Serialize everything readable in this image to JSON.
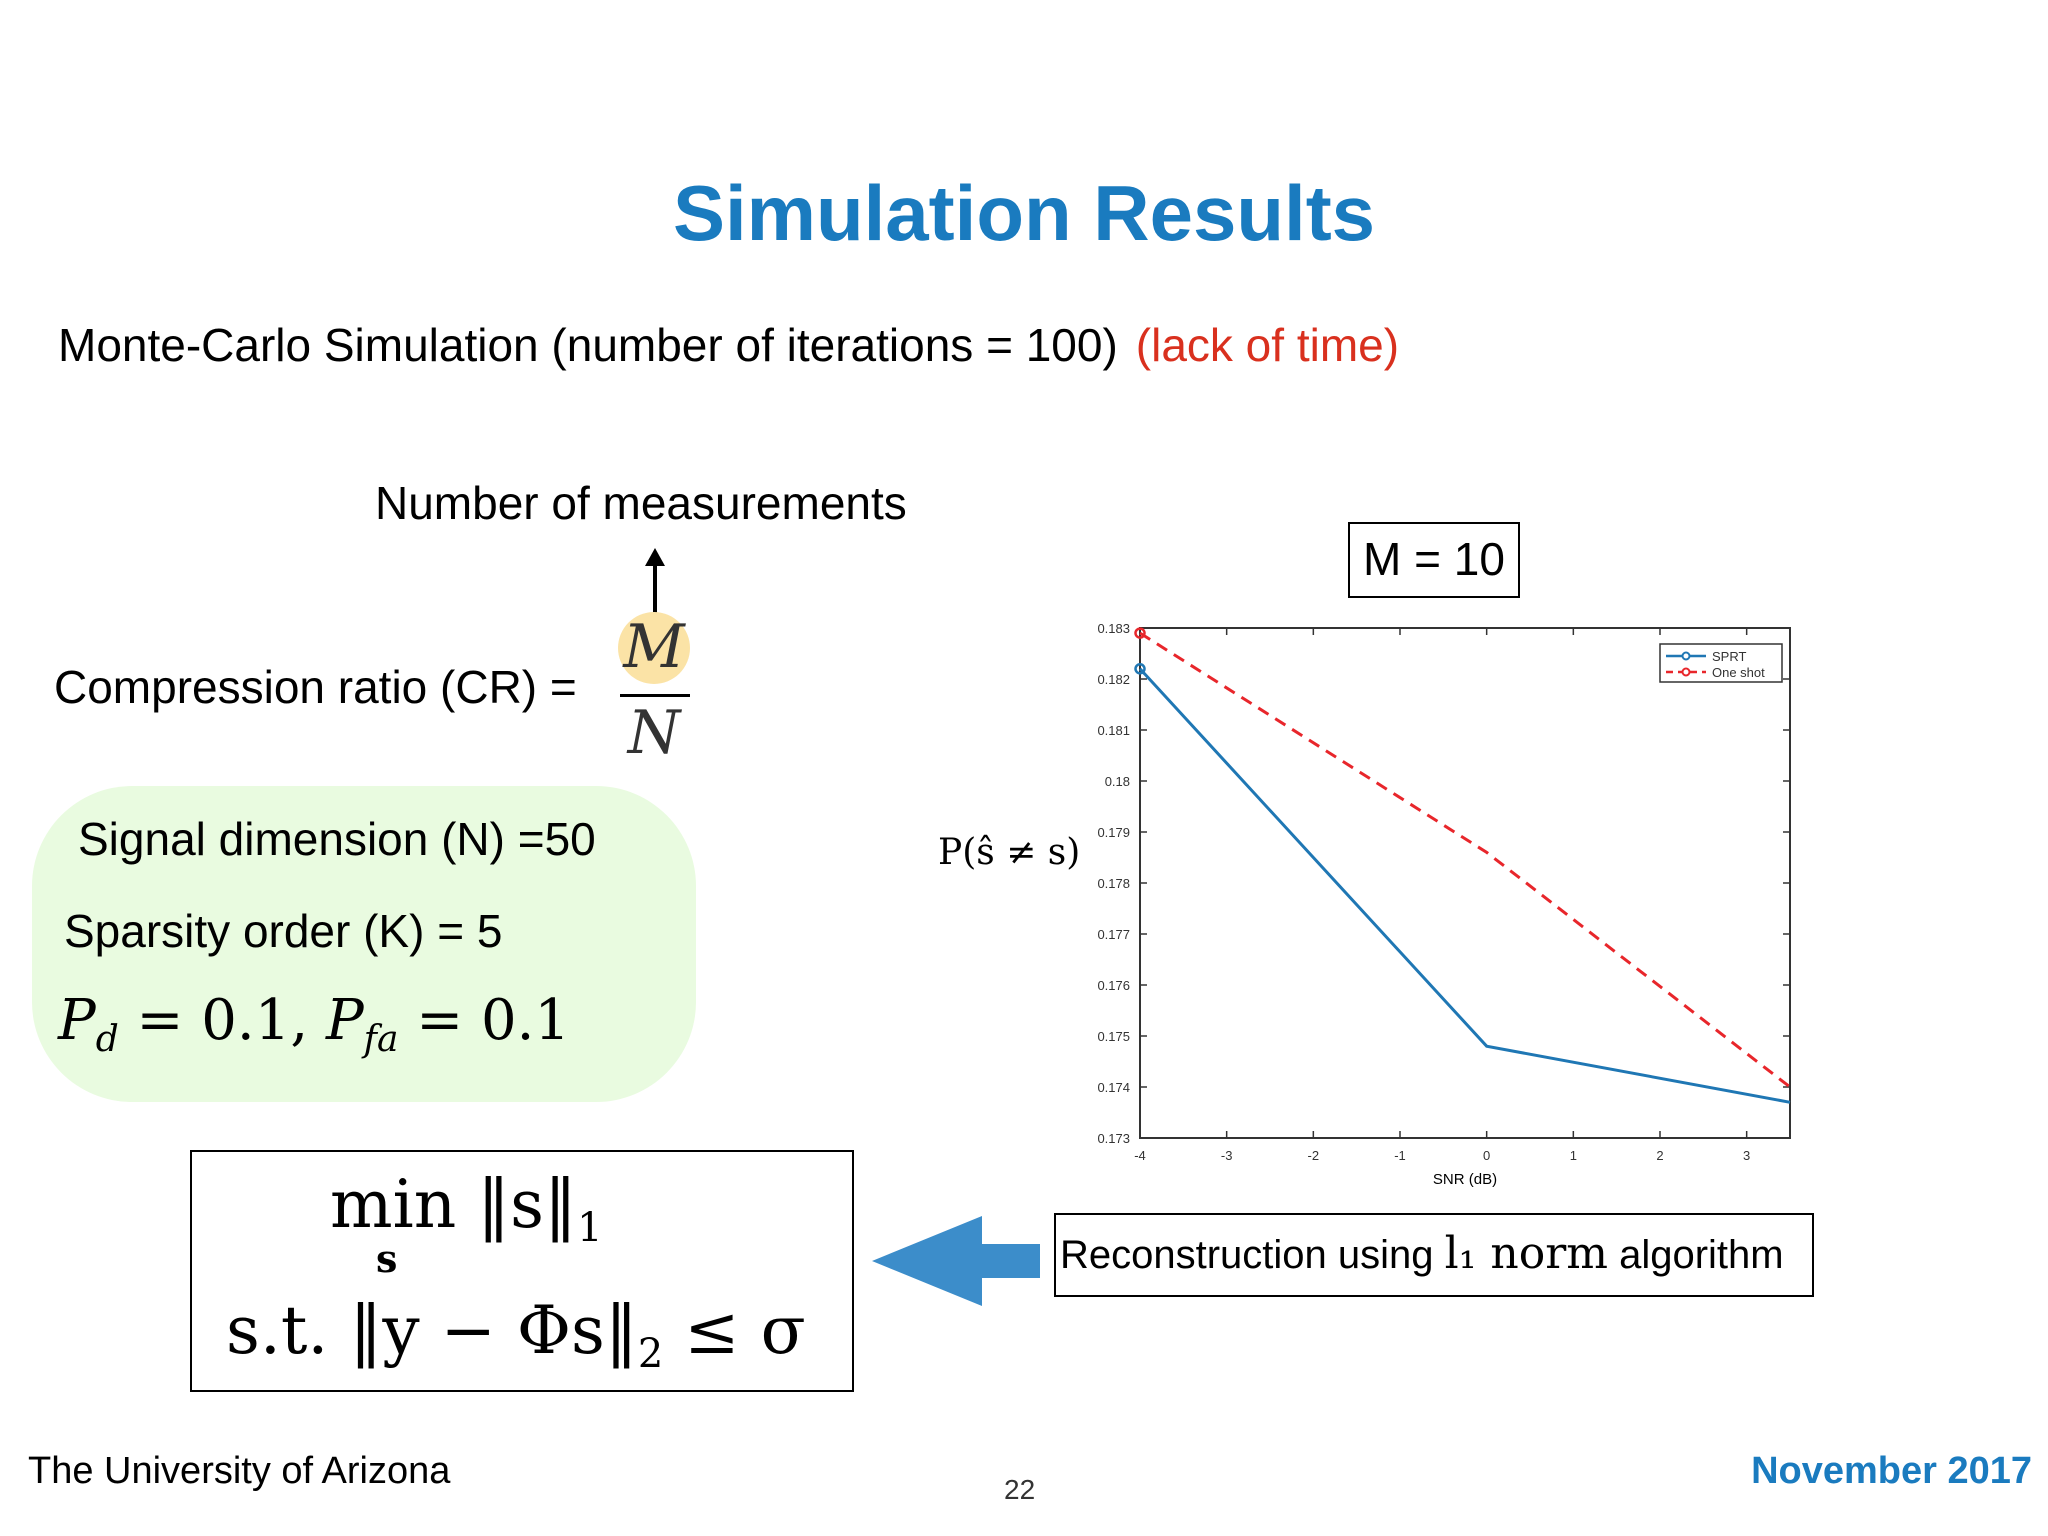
{
  "slide": {
    "title": "Simulation Results",
    "subtitle": "Monte-Carlo Simulation (number of iterations = 100)",
    "subtitle_note": "(lack of time)",
    "measurements_label": "Number of measurements",
    "cr_label": "Compression ratio (CR) =",
    "frac_num": "M",
    "frac_den": "N",
    "signal_dim": "Signal dimension (N) =50",
    "sparsity": "Sparsity order (K) = 5",
    "pd_value": "= 0.1,",
    "pfa_value": "= 0.1",
    "opt_min": "min ‖s‖",
    "opt_min_idx": "1",
    "opt_min_sub": "s",
    "opt_st": "s.t. ‖y − Φs‖",
    "opt_st_idx": "2",
    "opt_st_tail": "≤ σ",
    "recon_pre": "Reconstruction using",
    "recon_math": "l₁ norm",
    "recon_post": "algorithm",
    "m_box": "M = 10",
    "footer_left": "The University of Arizona",
    "page_number": "22",
    "footer_right": "November 2017"
  },
  "colors": {
    "title": "#1a7bbf",
    "note": "#d9301e",
    "sprt": "#1f77b4",
    "oneshot": "#e8262b",
    "param_bg": "#e9fbe0"
  },
  "chart_data": {
    "type": "line",
    "xlabel": "SNR (dB)",
    "ylabel": "P(ŝ ≠ s)",
    "xlim": [
      -4,
      3.5
    ],
    "ylim": [
      0.173,
      0.183
    ],
    "xticks": [
      -4,
      -3,
      -2,
      -1,
      0,
      1,
      2,
      3
    ],
    "yticks": [
      0.173,
      0.174,
      0.175,
      0.176,
      0.177,
      0.178,
      0.179,
      0.18,
      0.181,
      0.182,
      0.183
    ],
    "legend_position": "top-right",
    "grid": false,
    "series": [
      {
        "name": "SPRT",
        "x": [
          -4,
          0,
          3.5
        ],
        "y": [
          0.1822,
          0.1748,
          0.1737
        ],
        "markers_at": [
          0
        ],
        "style": "solid"
      },
      {
        "name": "One shot",
        "x": [
          -4,
          0,
          3.5
        ],
        "y": [
          0.1829,
          0.1786,
          0.174
        ],
        "markers_at": [
          0
        ],
        "style": "dashed"
      }
    ]
  }
}
